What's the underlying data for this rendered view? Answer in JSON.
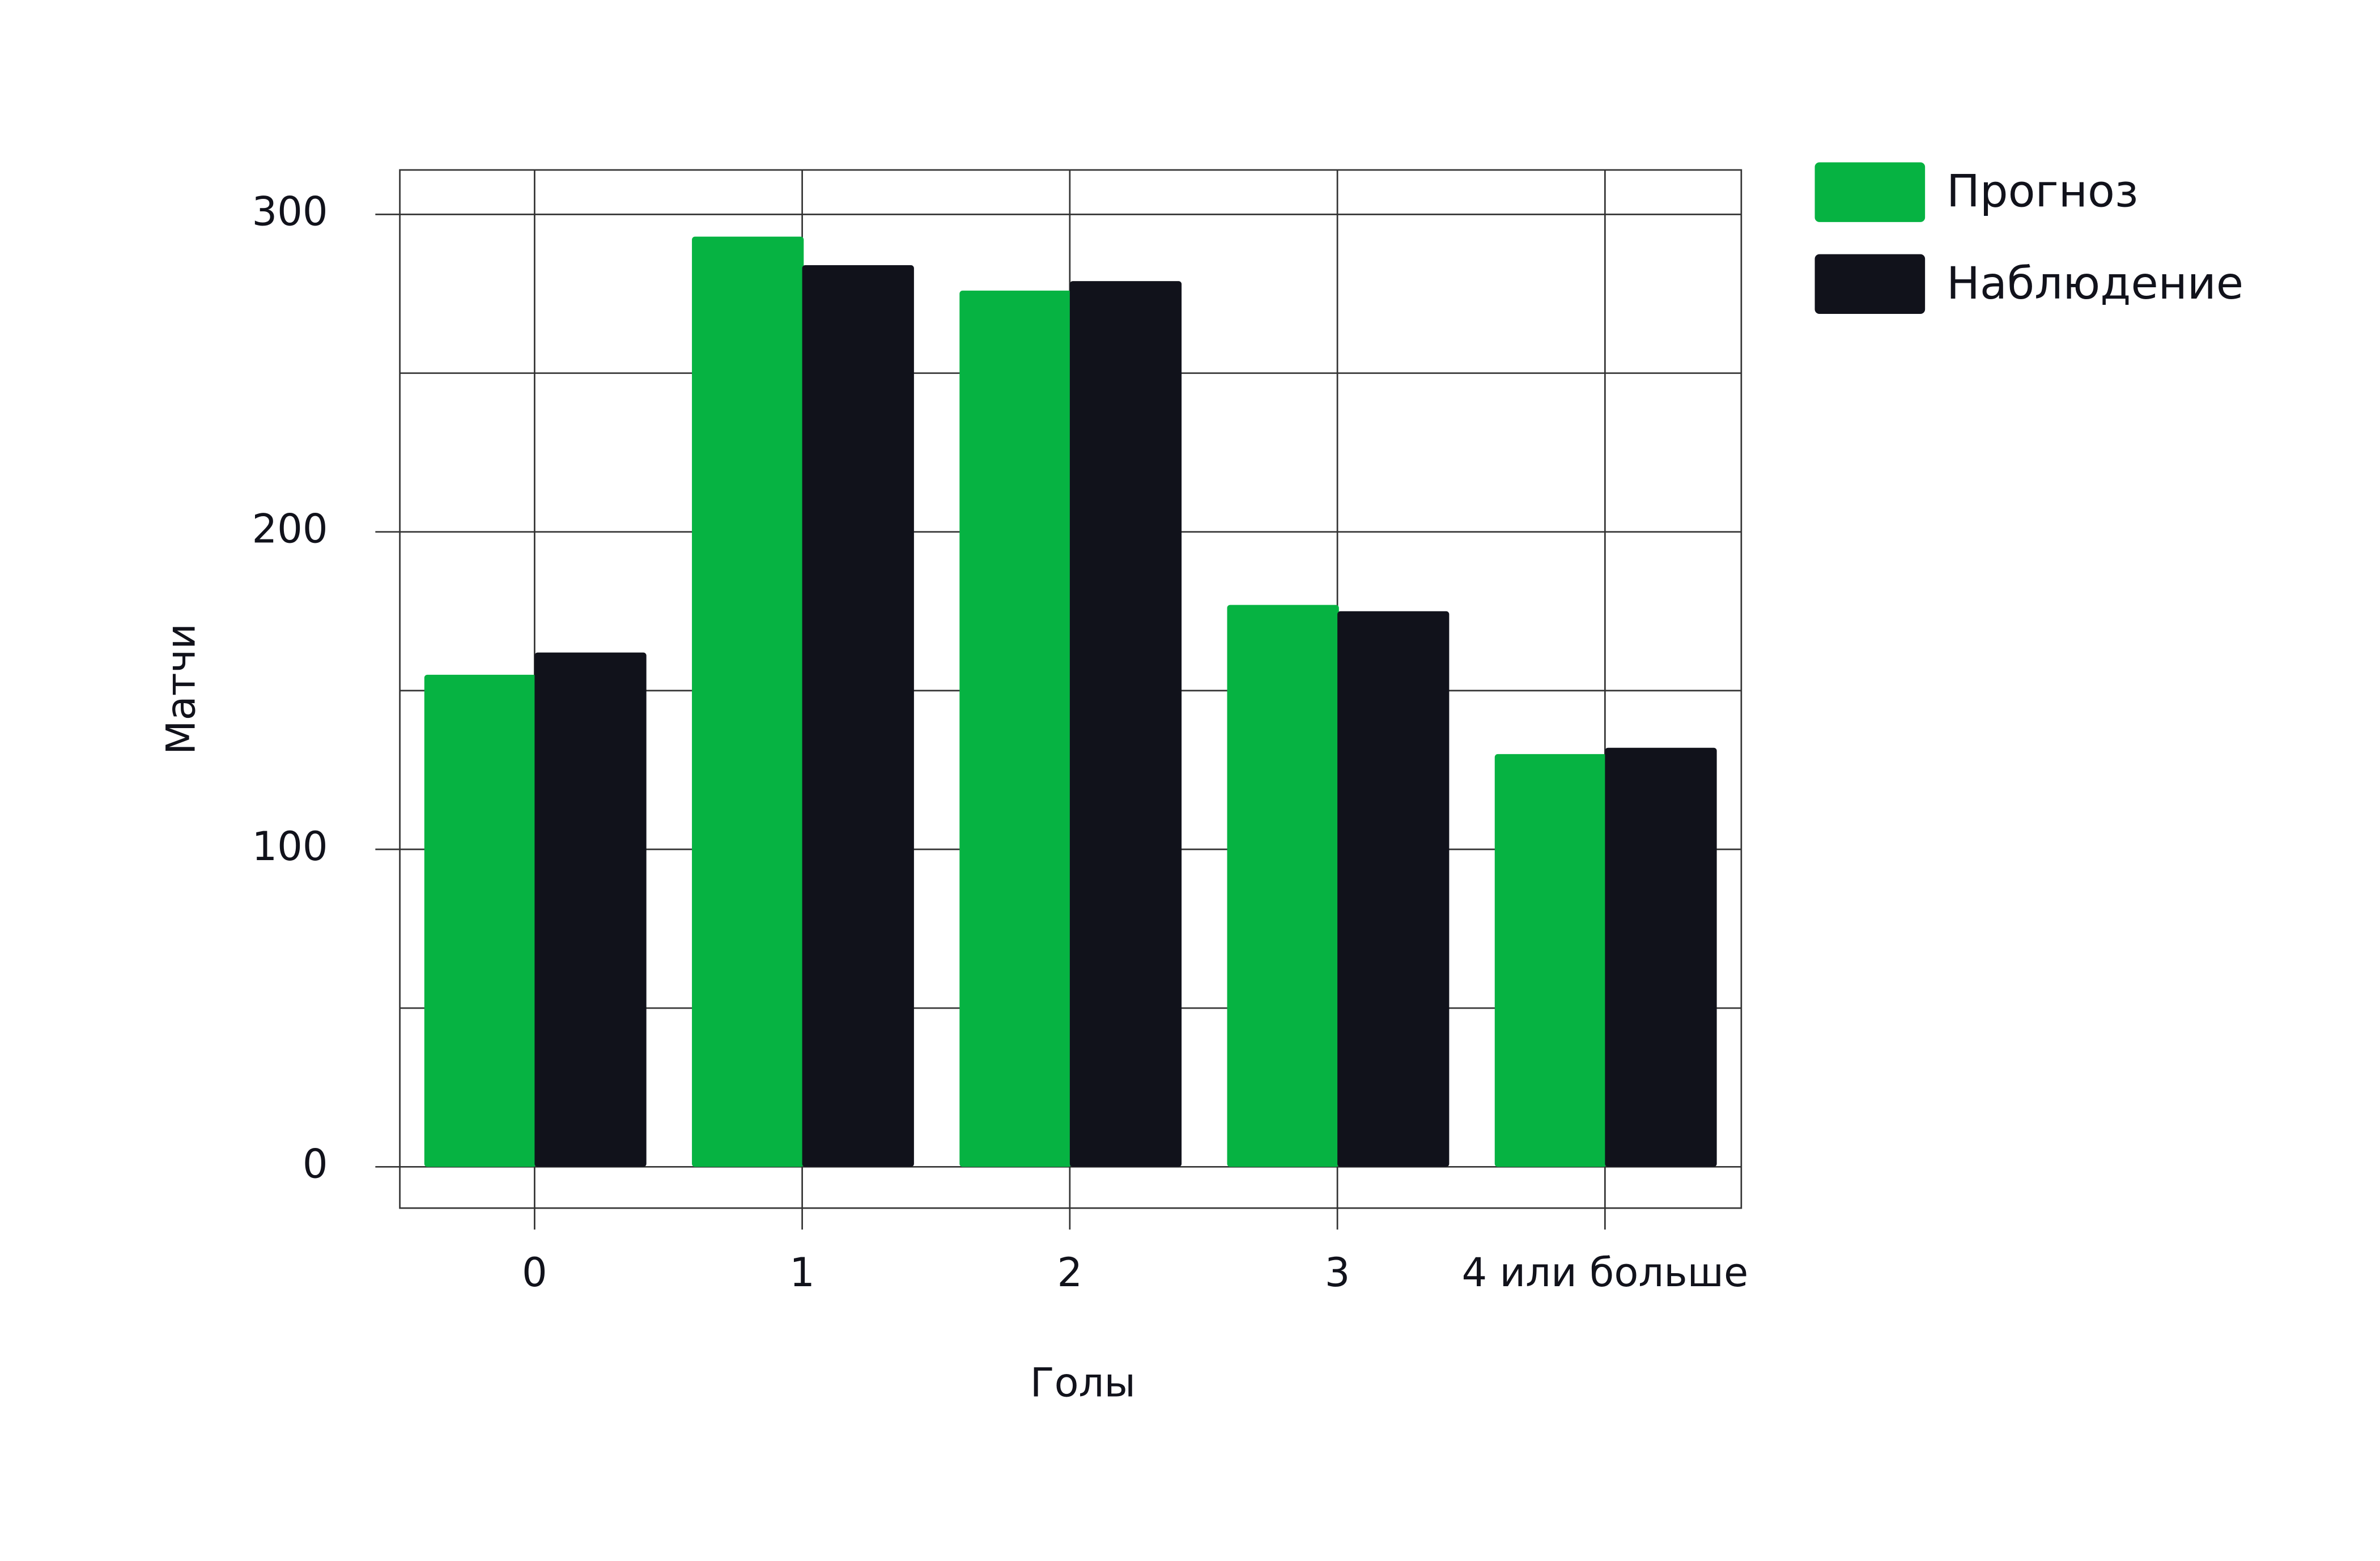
{
  "chart_data": {
    "type": "bar",
    "x_label": "Голы",
    "y_label": "Матчи",
    "categories": [
      "0",
      "1",
      "2",
      "3",
      "4 или больше"
    ],
    "series": [
      {
        "name": "Прогноз",
        "color": "#06b342",
        "values": [
          155,
          293,
          276,
          177,
          130
        ]
      },
      {
        "name": "Наблюдение",
        "color": "#11121b",
        "values": [
          162,
          284,
          279,
          175,
          132
        ]
      }
    ],
    "ylim": [
      -13,
      314
    ],
    "yticks": [
      0,
      100,
      200,
      300
    ],
    "y_minor_ticks": [
      50,
      150,
      250
    ],
    "grid": true,
    "legend": "outside-right"
  }
}
